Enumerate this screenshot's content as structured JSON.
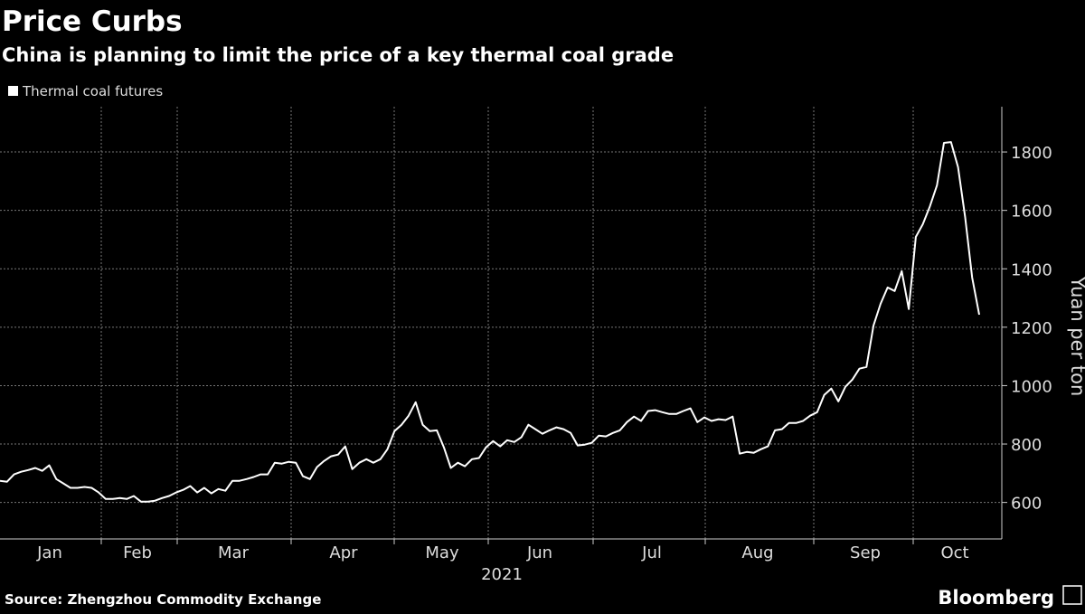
{
  "chart_data": {
    "type": "line",
    "title": "Price Curbs",
    "subtitle": "China is planning to limit the price of a key thermal coal grade",
    "source": "Source: Zhengzhou Commodity Exchange",
    "brand": "Bloomberg",
    "y_label": "Yuan per ton",
    "x_label": "2021",
    "months": [
      "Jan",
      "Feb",
      "Mar",
      "Apr",
      "May",
      "Jun",
      "Jul",
      "Aug",
      "Sep",
      "Oct"
    ],
    "ylim": [
      475,
      1955
    ],
    "yticks": [
      600,
      800,
      1000,
      1200,
      1400,
      1600,
      1800
    ],
    "grid": true,
    "series": [
      {
        "name": "Thermal coal futures",
        "color": "#ffffff",
        "values": [
          674,
          671,
          696,
          705,
          711,
          718,
          708,
          727,
          680,
          665,
          650,
          650,
          653,
          650,
          634,
          612,
          612,
          615,
          612,
          622,
          603,
          603,
          606,
          615,
          622,
          634,
          643,
          656,
          634,
          650,
          631,
          646,
          640,
          674,
          674,
          680,
          687,
          696,
          696,
          736,
          733,
          739,
          736,
          690,
          680,
          721,
          742,
          758,
          764,
          792,
          714,
          736,
          748,
          736,
          748,
          782,
          844,
          866,
          897,
          943,
          866,
          844,
          847,
          789,
          718,
          736,
          724,
          748,
          752,
          789,
          810,
          792,
          813,
          807,
          823,
          866,
          851,
          835,
          847,
          857,
          851,
          838,
          795,
          798,
          804,
          829,
          826,
          838,
          847,
          875,
          894,
          879,
          913,
          916,
          909,
          903,
          903,
          913,
          922,
          875,
          891,
          879,
          885,
          882,
          894,
          767,
          773,
          770,
          782,
          792,
          847,
          851,
          872,
          872,
          879,
          897,
          909,
          968,
          990,
          946,
          996,
          1021,
          1058,
          1064,
          1206,
          1280,
          1336,
          1324,
          1392,
          1262,
          1509,
          1553,
          1614,
          1686,
          1831,
          1834,
          1748,
          1578,
          1370,
          1243
        ]
      }
    ]
  }
}
